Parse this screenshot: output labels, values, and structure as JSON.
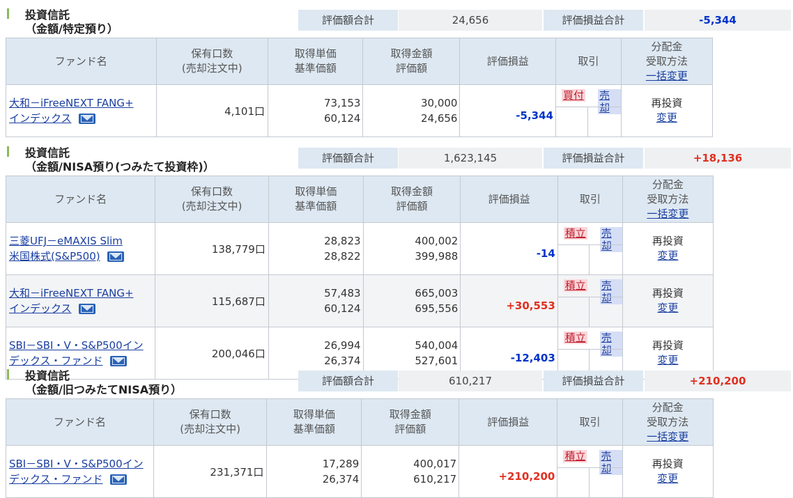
{
  "sections": [
    {
      "title_line1": "投資信託",
      "title_line2": "（金額/特定預り）",
      "eval_total_label": "評価額合計",
      "eval_total": "24,656",
      "pl_total_label": "評価損益合計",
      "pl_total": "-5,344",
      "header": {
        "fund": "ファンド名",
        "holding_1": "保有口数",
        "holding_2": "(売却注文中)",
        "unit_1": "取得単価",
        "unit_2": "基準価額",
        "amount_1": "取得金額",
        "amount_2": "評価額",
        "pl": "評価損益",
        "trade": "取引",
        "dist_1": "分配金",
        "dist_2": "受取方法",
        "dist_3": "一括変更"
      },
      "rows": [
        {
          "fund_1": "大和－iFreeNEXT FANG+",
          "fund_2": "インデックス",
          "holding": "4,101口",
          "unit_cost": "73,153",
          "nav": "60,124",
          "cost": "30,000",
          "value": "24,656",
          "pl": "-5,344",
          "buy": "買付",
          "sell": "売却",
          "dist": "再投資",
          "change": "変更"
        }
      ]
    },
    {
      "title_line1": "投資信託",
      "title_line2": "（金額/NISA預り(つみたて投資枠)）",
      "eval_total_label": "評価額合計",
      "eval_total": "1,623,145",
      "pl_total_label": "評価損益合計",
      "pl_total": "+18,136",
      "header": {
        "fund": "ファンド名",
        "holding_1": "保有口数",
        "holding_2": "(売却注文中)",
        "unit_1": "取得単価",
        "unit_2": "基準価額",
        "amount_1": "取得金額",
        "amount_2": "評価額",
        "pl": "評価損益",
        "trade": "取引",
        "dist_1": "分配金",
        "dist_2": "受取方法",
        "dist_3": "一括変更"
      },
      "rows": [
        {
          "fund_1": "三菱UFJ－eMAXIS Slim",
          "fund_2": "米国株式(S&P500)",
          "holding": "138,779口",
          "unit_cost": "28,823",
          "nav": "28,822",
          "cost": "400,002",
          "value": "399,988",
          "pl": "-14",
          "buy": "積立",
          "sell": "売却",
          "dist": "再投資",
          "change": "変更"
        },
        {
          "fund_1": "大和－iFreeNEXT FANG+",
          "fund_2": "インデックス",
          "holding": "115,687口",
          "unit_cost": "57,483",
          "nav": "60,124",
          "cost": "665,003",
          "value": "695,556",
          "pl": "+30,553",
          "buy": "積立",
          "sell": "売却",
          "dist": "再投資",
          "change": "変更"
        },
        {
          "fund_1": "SBI－SBI・V・S&P500イン",
          "fund_2": "デックス・ファンド",
          "holding": "200,046口",
          "unit_cost": "26,994",
          "nav": "26,374",
          "cost": "540,004",
          "value": "527,601",
          "pl": "-12,403",
          "buy": "積立",
          "sell": "売却",
          "dist": "再投資",
          "change": "変更"
        }
      ]
    },
    {
      "title_line1": "投資信託",
      "title_line2": "（金額/旧つみたてNISA預り）",
      "eval_total_label": "評価額合計",
      "eval_total": "610,217",
      "pl_total_label": "評価損益合計",
      "pl_total": "+210,200",
      "header": {
        "fund": "ファンド名",
        "holding_1": "保有口数",
        "holding_2": "(売却注文中)",
        "unit_1": "取得単価",
        "unit_2": "基準価額",
        "amount_1": "取得金額",
        "amount_2": "評価額",
        "pl": "評価損益",
        "trade": "取引",
        "dist_1": "分配金",
        "dist_2": "受取方法",
        "dist_3": "一括変更"
      },
      "rows": [
        {
          "fund_1": "SBI－SBI・V・S&P500イン",
          "fund_2": "デックス・ファンド",
          "holding": "231,371口",
          "unit_cost": "17,289",
          "nav": "26,374",
          "cost": "400,017",
          "value": "610,217",
          "pl": "+210,200",
          "buy": "積立",
          "sell": "売却",
          "dist": "再投資",
          "change": "変更"
        }
      ]
    }
  ],
  "colors": {
    "negative": "#0033cc",
    "positive": "#e03020",
    "header_bg": "#dde8f2",
    "accent_bar": "#8cb85c"
  },
  "icons": {
    "mail": "mail-icon"
  }
}
